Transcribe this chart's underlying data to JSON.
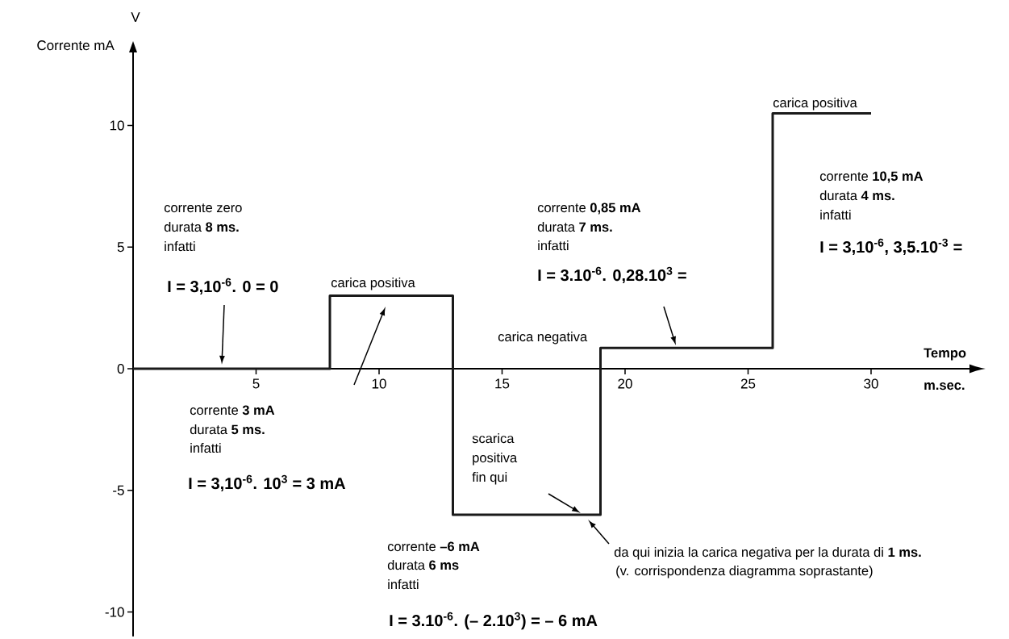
{
  "chart_data": {
    "type": "step",
    "xlabel": "Tempo",
    "ylabel": "Corrente mA",
    "x": [
      0,
      8,
      13,
      19,
      26,
      30
    ],
    "values": [
      0,
      3,
      -6,
      0.85,
      10.5,
      10.5
    ],
    "color": "#1a1a1a",
    "xlim": [
      0,
      34
    ],
    "ylim": [
      -11,
      13
    ],
    "xticks": [
      5,
      10,
      15,
      20,
      25,
      30
    ],
    "yticks": [
      -10,
      -5,
      0,
      5,
      10
    ],
    "annotations": [
      "V",
      "m.sec.",
      "corrente zero",
      "durata **8 ms.**",
      "infatti",
      "I = 3,10$^{-6}$. 0 = 0",
      "carica positiva",
      "corrente **3 mA**",
      "durata **5 ms.**",
      "infatti",
      "I = 3,10$^{-6}$. 10$^{3}$ = 3 mA",
      "carica negativa",
      "scarica",
      "positiva",
      "fin qui",
      "corrente **–6 mA**",
      "durata **6 ms**",
      "infatti",
      "I = 3.10$^{-6}$. (– 2.10$^{3}$) = – 6 mA",
      "da qui inizia la carica negativa per la durata di **1 ms.**",
      "(v. corrispondenza diagramma soprastante)",
      "corrente **0,85 mA**",
      "durata **7 ms.**",
      "infatti",
      "I = 3.10$^{-6}$. 0,28.10$^{3}$ =",
      "carica positiva",
      "corrente **10,5 mA**",
      "durata **4 ms.**",
      "infatti",
      "I = 3,10$^{-6}$, 3,5.10$^{-3}$ ="
    ]
  }
}
